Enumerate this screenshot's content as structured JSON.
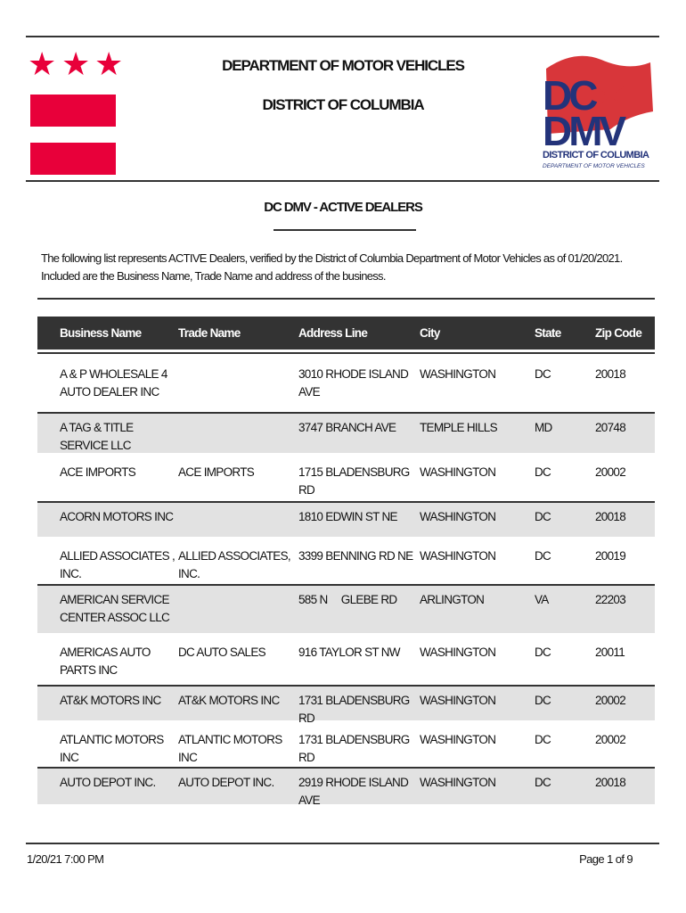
{
  "header": {
    "title_line1": "DEPARTMENT OF MOTOR VEHICLES",
    "title_line2": "DISTRICT OF COLUMBIA",
    "flag_color": "#e8003a",
    "logo": {
      "text_dc": "DC",
      "text_dmv": "DMV",
      "text_district": "DISTRICT OF COLUMBIA",
      "text_dept": "DEPARTMENT OF MOTOR VEHICLES",
      "blue": "#23337a",
      "red": "#d8363a"
    }
  },
  "report_title": "DC DMV - ACTIVE DEALERS",
  "intro": "The following list represents ACTIVE Dealers, verified by the District of Columbia Department of Motor Vehicles as of 01/20/2021. Included are the Business Name, Trade Name and address of the business.",
  "table": {
    "columns": [
      "Business Name",
      "Trade Name",
      "Address Line",
      "City",
      "State",
      "Zip Code"
    ],
    "rows": [
      [
        "A & P WHOLESALE 4 AUTO DEALER INC",
        "",
        "3010 RHODE ISLAND AVE",
        "WASHINGTON",
        "DC",
        "20018"
      ],
      [
        "A TAG & TITLE SERVICE LLC",
        "",
        "3747 BRANCH AVE",
        "TEMPLE HILLS",
        "MD",
        "20748"
      ],
      [
        "ACE IMPORTS",
        "ACE IMPORTS",
        "1715 BLADENSBURG RD",
        "WASHINGTON",
        "DC",
        "20002"
      ],
      [
        "ACORN MOTORS INC",
        "",
        "1810 EDWIN ST NE",
        "WASHINGTON",
        "DC",
        "20018"
      ],
      [
        "ALLIED ASSOCIATES , INC.",
        "ALLIED ASSOCIATES, INC.",
        "3399 BENNING RD NE",
        "WASHINGTON",
        "DC",
        "20019"
      ],
      [
        "AMERICAN SERVICE CENTER ASSOC LLC",
        "",
        "585 N     GLEBE RD",
        "ARLINGTON",
        "VA",
        "22203"
      ],
      [
        "AMERICAS AUTO PARTS INC",
        "DC AUTO SALES",
        "916 TAYLOR ST NW",
        "WASHINGTON",
        "DC",
        "20011"
      ],
      [
        "AT&K MOTORS INC",
        "AT&K MOTORS INC",
        "1731 BLADENSBURG RD",
        "WASHINGTON",
        "DC",
        "20002"
      ],
      [
        "ATLANTIC MOTORS INC",
        "ATLANTIC MOTORS INC",
        "1731 BLADENSBURG RD",
        "WASHINGTON",
        "DC",
        "20002"
      ],
      [
        "AUTO DEPOT INC.",
        "AUTO DEPOT INC.",
        "2919 RHODE ISLAND AVE",
        "WASHINGTON",
        "DC",
        "20018"
      ]
    ]
  },
  "footer": {
    "timestamp": "1/20/21 7:00 PM",
    "page": "Page 1 of 9"
  }
}
